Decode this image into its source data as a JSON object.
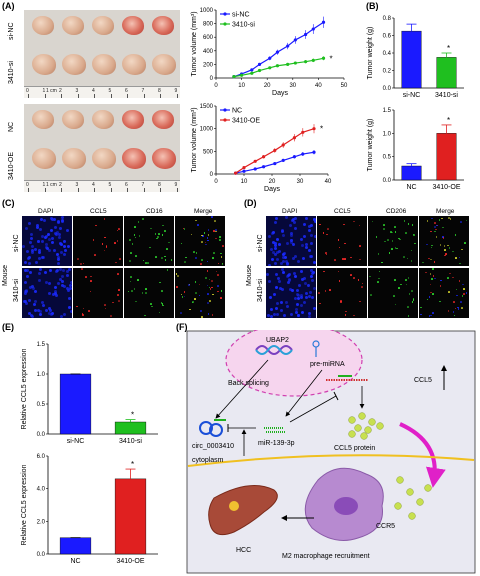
{
  "panels": {
    "A": "(A)",
    "B": "(B)",
    "C": "(C)",
    "D": "(D)",
    "E": "(E)",
    "F": "(F)"
  },
  "photo_labels": {
    "si_nc": "si-NC",
    "si_3410": "3410-si",
    "nc": "NC",
    "oe_3410": "3410-OE",
    "ruler_unit": "1 cm"
  },
  "ruler_numbers": [
    "0",
    "1",
    "2",
    "3",
    "4",
    "5",
    "6",
    "7",
    "8",
    "9"
  ],
  "micro": {
    "c_headers": [
      "DAPI",
      "CCL5",
      "CD16",
      "Merge"
    ],
    "d_headers": [
      "DAPI",
      "CCL5",
      "CD206",
      "Merge"
    ],
    "row_labels": [
      "si-NC",
      "3410-si"
    ],
    "mouse_label": "Mouse"
  },
  "diagram": {
    "ubap2": "UBAP2",
    "pre_mirna": "pre-miRNA",
    "back_splicing": "Back splicing",
    "circ": "circ_0003410",
    "mir": "miR-139-3p",
    "ccl5": "CCL5",
    "ccl5_protein": "CCL5 protein",
    "cytoplasm": "cytoplasm",
    "ccr5": "CCR5",
    "hcc": "HCC",
    "m2": "M2 macrophage recruitment"
  },
  "chart_data": [
    {
      "type": "line",
      "xlabel": "Days",
      "ylabel": "Tumor volume (mm³)",
      "xlim": [
        0,
        50
      ],
      "xticks": [
        0,
        10,
        20,
        30,
        40,
        50
      ],
      "ylim": [
        0,
        1000
      ],
      "yticks": [
        0,
        200,
        400,
        600,
        800,
        1000
      ],
      "series": [
        {
          "name": "si-NC",
          "color": "#1a1aff",
          "x": [
            7,
            10,
            14,
            17,
            21,
            24,
            28,
            31,
            35,
            38,
            42
          ],
          "y": [
            20,
            60,
            120,
            200,
            290,
            380,
            470,
            560,
            640,
            720,
            820
          ]
        },
        {
          "name": "3410-si",
          "color": "#1fbf1f",
          "x": [
            7,
            10,
            14,
            17,
            21,
            24,
            28,
            31,
            35,
            38,
            42
          ],
          "y": [
            20,
            40,
            70,
            110,
            150,
            180,
            200,
            220,
            240,
            260,
            290
          ]
        }
      ],
      "annotation": "*"
    },
    {
      "type": "line",
      "xlabel": "Days",
      "ylabel": "Tumor volume (mm³)",
      "xlim": [
        0,
        40
      ],
      "xticks": [
        0,
        10,
        20,
        30,
        40
      ],
      "ylim": [
        0,
        1500
      ],
      "yticks": [
        0,
        500,
        1000,
        1500
      ],
      "series": [
        {
          "name": "NC",
          "color": "#1a1aff",
          "x": [
            7,
            10,
            14,
            17,
            21,
            24,
            28,
            31,
            35
          ],
          "y": [
            20,
            60,
            110,
            160,
            230,
            300,
            380,
            440,
            480
          ]
        },
        {
          "name": "3410-OE",
          "color": "#e02020",
          "x": [
            7,
            10,
            14,
            17,
            21,
            24,
            28,
            31,
            35
          ],
          "y": [
            20,
            140,
            280,
            380,
            520,
            640,
            800,
            920,
            1000
          ]
        }
      ],
      "annotation": "*"
    },
    {
      "type": "bar",
      "ylabel": "Tumor weight (g)",
      "categories": [
        "si-NC",
        "3410-si"
      ],
      "values": [
        0.65,
        0.35
      ],
      "errors": [
        0.08,
        0.05
      ],
      "colors": [
        "#1a1aff",
        "#1fbf1f"
      ],
      "ylim": [
        0,
        0.8
      ],
      "yticks": [
        0.0,
        0.2,
        0.4,
        0.6,
        0.8
      ],
      "annotation": "*"
    },
    {
      "type": "bar",
      "ylabel": "Tumor weight (g)",
      "categories": [
        "NC",
        "3410-OE"
      ],
      "values": [
        0.3,
        1.0
      ],
      "errors": [
        0.05,
        0.18
      ],
      "colors": [
        "#1a1aff",
        "#e02020"
      ],
      "ylim": [
        0,
        1.5
      ],
      "yticks": [
        0.0,
        0.5,
        1.0,
        1.5
      ],
      "annotation": "*"
    },
    {
      "type": "bar",
      "ylabel": "Relative CCL5 expression",
      "categories": [
        "si-NC",
        "3410-si"
      ],
      "values": [
        1.0,
        0.2
      ],
      "errors": [
        0.0,
        0.04
      ],
      "colors": [
        "#1a1aff",
        "#1fbf1f"
      ],
      "ylim": [
        0,
        1.5
      ],
      "yticks": [
        0.0,
        0.5,
        1.0,
        1.5
      ],
      "annotation": "*"
    },
    {
      "type": "bar",
      "ylabel": "Relative CCL5 expression",
      "categories": [
        "NC",
        "3410-OE"
      ],
      "values": [
        1.0,
        4.6
      ],
      "errors": [
        0.0,
        0.6
      ],
      "colors": [
        "#1a1aff",
        "#e02020"
      ],
      "ylim": [
        0,
        6
      ],
      "yticks": [
        0.0,
        2.0,
        4.0,
        6.0
      ],
      "annotation": "*"
    }
  ]
}
